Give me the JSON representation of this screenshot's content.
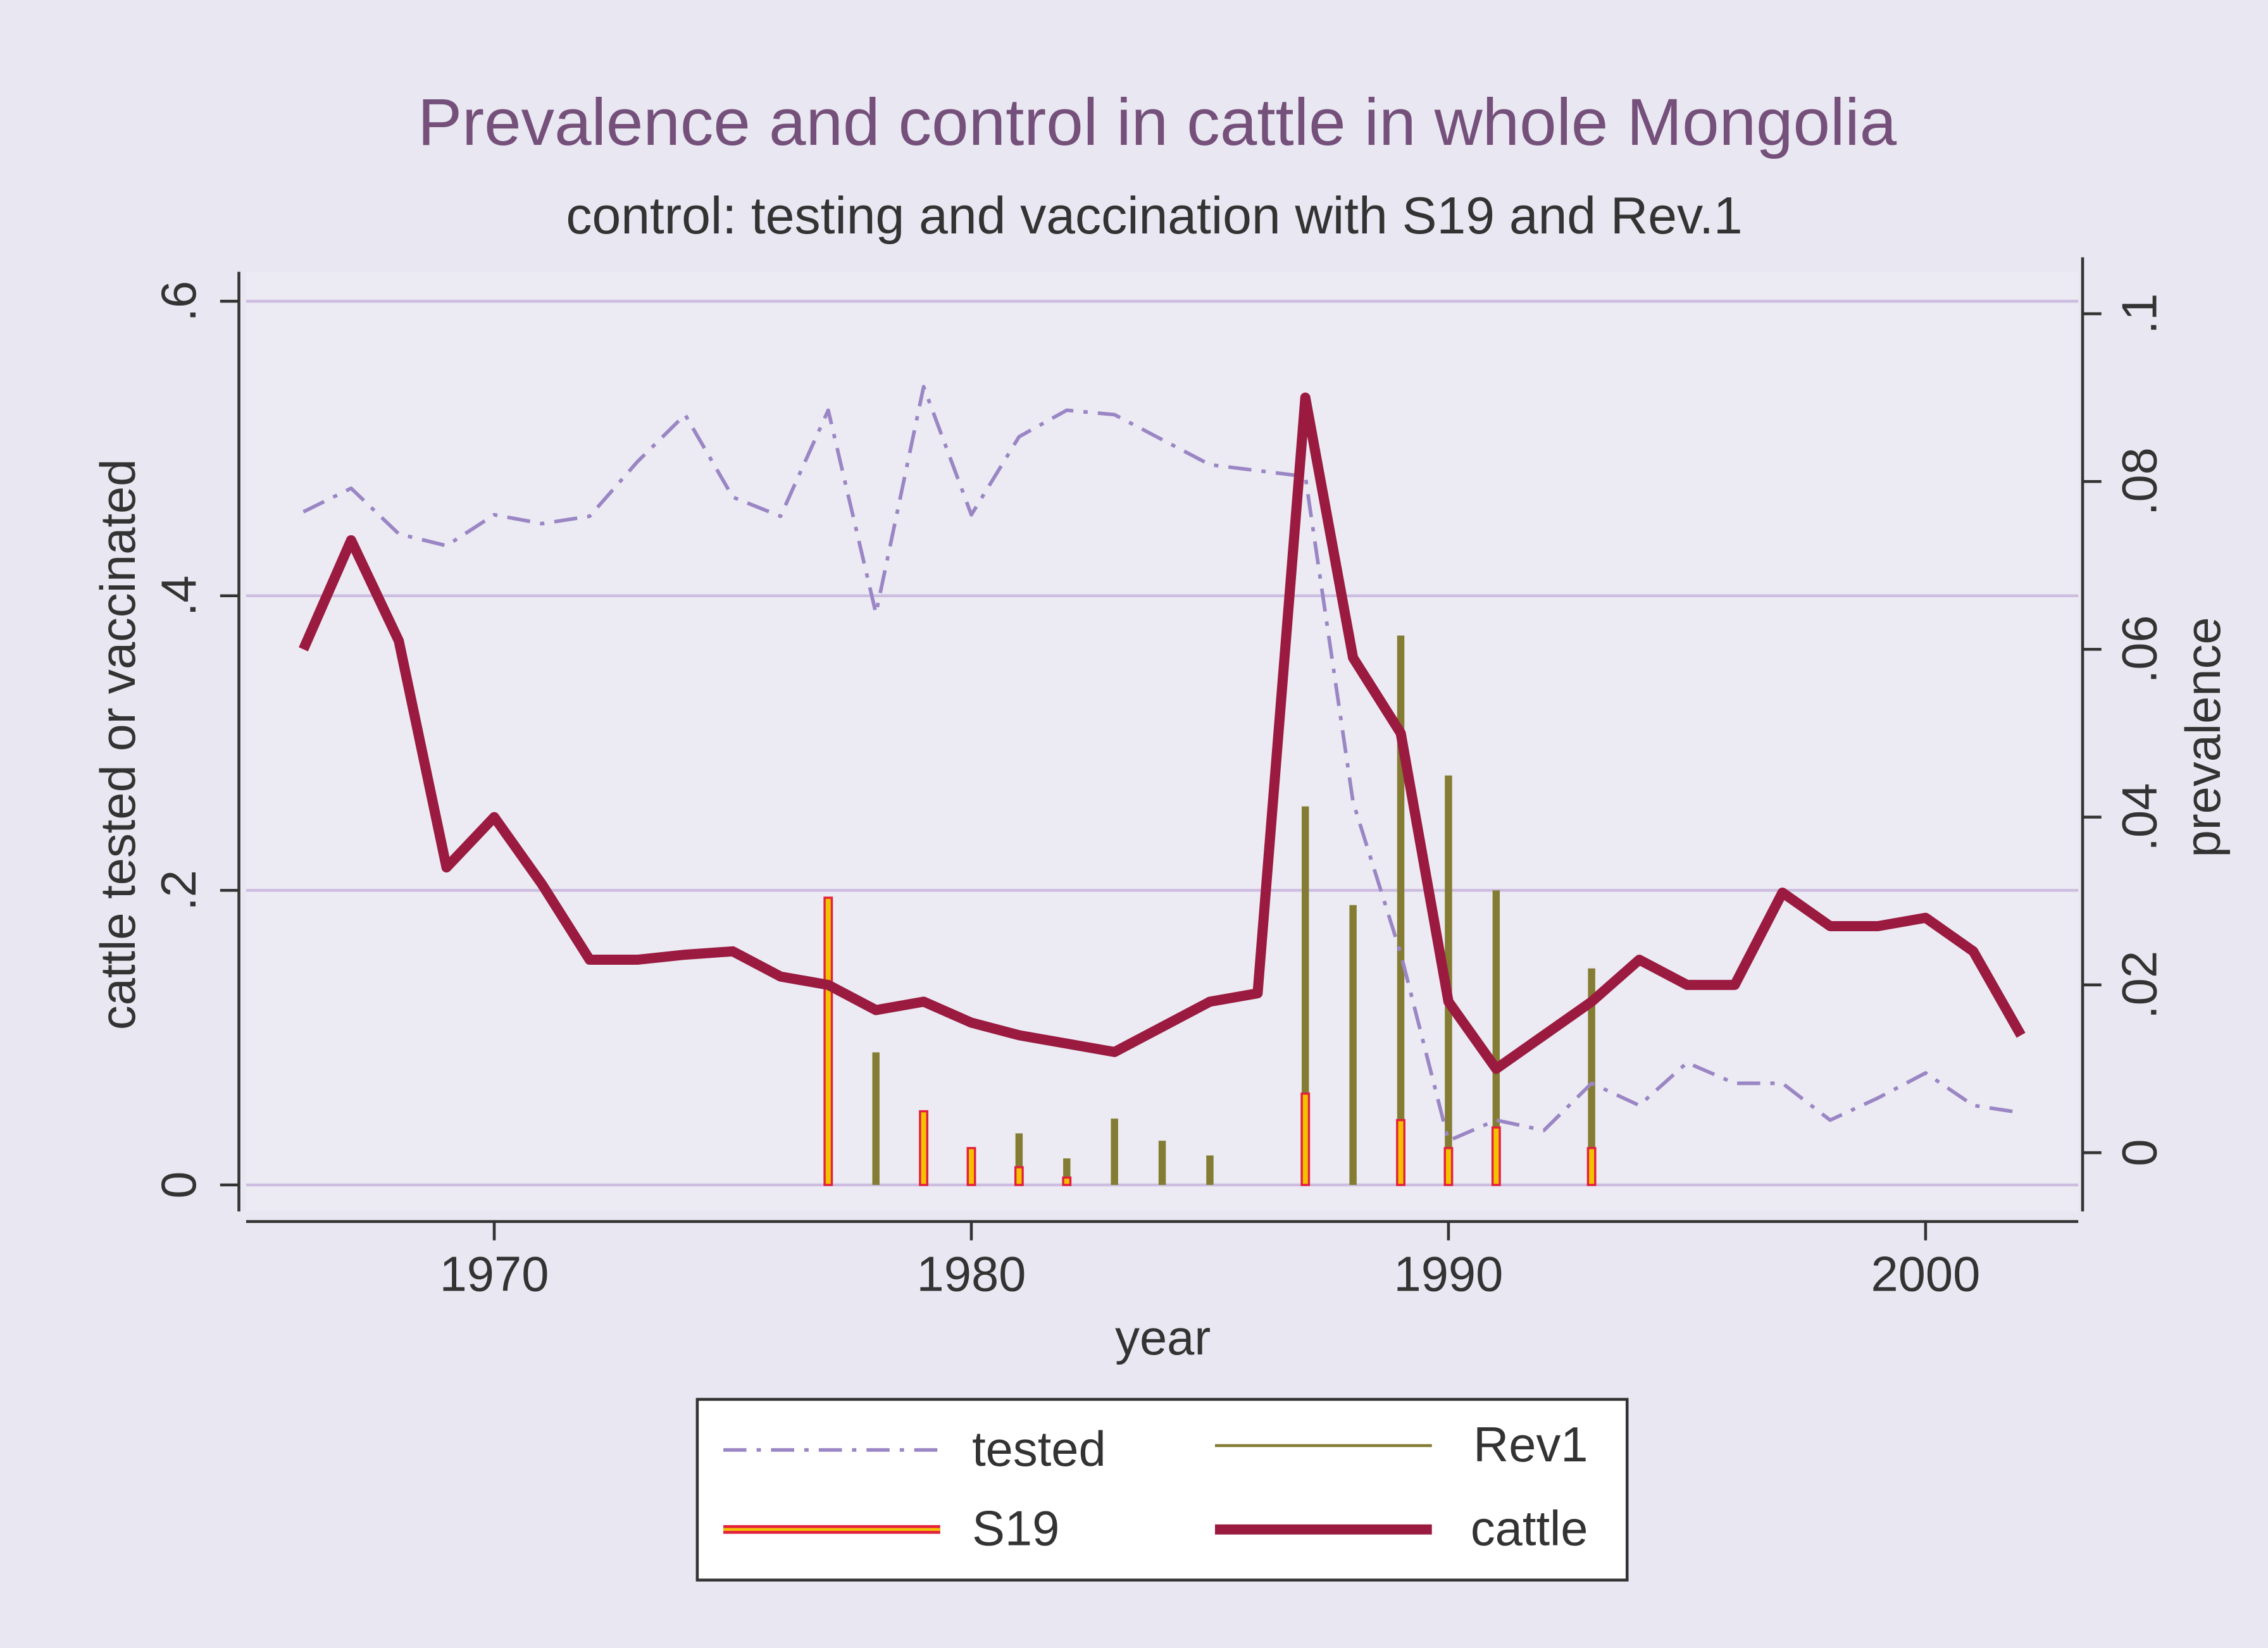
{
  "chart_data": {
    "type": "combo",
    "title": "Prevalence and control in cattle in whole Mongolia",
    "subtitle": "control: testing and vaccination with S19 and Rev.1",
    "xlabel": "year",
    "ylabel": "cattle tested or vaccinated",
    "y2label": "prevalence",
    "x": [
      1966,
      1967,
      1968,
      1969,
      1970,
      1971,
      1972,
      1973,
      1974,
      1975,
      1976,
      1977,
      1978,
      1979,
      1980,
      1981,
      1982,
      1983,
      1984,
      1985,
      1986,
      1987,
      1988,
      1989,
      1990,
      1991,
      1992,
      1993,
      1994,
      1995,
      1996,
      1997,
      1998,
      1999,
      2000,
      2001,
      2002
    ],
    "xlim": [
      1964.8,
      2003.2
    ],
    "xticks": [
      1970,
      1980,
      1990,
      2000
    ],
    "ylim": [
      -0.018,
      0.62
    ],
    "yticks": [
      0,
      {
        "value": 0.2,
        "label": ".2"
      },
      {
        "value": 0.4,
        "label": ".4"
      },
      {
        "value": 0.6,
        "label": ".6"
      }
    ],
    "y2lim": [
      -0.007,
      0.105
    ],
    "y2ticks": [
      0,
      {
        "value": 0.02,
        "label": ".02"
      },
      {
        "value": 0.04,
        "label": ".04"
      },
      {
        "value": 0.06,
        "label": ".06"
      },
      {
        "value": 0.08,
        "label": ".08"
      },
      {
        "value": 0.1,
        "label": ".1"
      }
    ],
    "grid": true,
    "series": [
      {
        "name": "tested",
        "type": "line",
        "style": "dashdot",
        "color": "#9a86c4",
        "axis": "y",
        "values": [
          0.457,
          0.473,
          0.442,
          0.434,
          0.455,
          0.449,
          0.454,
          0.491,
          0.523,
          0.467,
          0.454,
          0.526,
          0.388,
          0.542,
          0.455,
          0.508,
          0.526,
          0.523,
          0.506,
          0.489,
          0.485,
          0.481,
          0.26,
          0.157,
          0.03,
          0.044,
          0.037,
          0.069,
          0.054,
          0.083,
          0.069,
          0.069,
          0.044,
          0.059,
          0.076,
          0.054,
          0.049
        ]
      },
      {
        "name": "Rev1",
        "type": "bar",
        "color": "#837c32",
        "axis": "y",
        "values": [
          null,
          null,
          null,
          null,
          null,
          null,
          null,
          null,
          null,
          null,
          null,
          null,
          0.09,
          null,
          null,
          0.035,
          0.018,
          0.045,
          0.03,
          0.02,
          null,
          0.257,
          0.19,
          0.373,
          0.278,
          0.2,
          null,
          0.147,
          null,
          null,
          null,
          null,
          null,
          null,
          null,
          null,
          null
        ]
      },
      {
        "name": "S19",
        "type": "bar",
        "color": "#f2c200",
        "edge": "#e3203c",
        "axis": "y",
        "values": [
          null,
          null,
          null,
          null,
          null,
          null,
          null,
          null,
          null,
          null,
          null,
          0.195,
          null,
          0.05,
          0.025,
          0.012,
          0.005,
          null,
          null,
          null,
          null,
          0.062,
          null,
          0.044,
          0.025,
          0.039,
          null,
          0.025,
          null,
          null,
          null,
          null,
          null,
          null,
          null,
          null,
          null
        ]
      },
      {
        "name": "cattle",
        "type": "line",
        "style": "solid",
        "color": "#9b1b40",
        "axis": "y2",
        "values": [
          0.06,
          0.073,
          0.061,
          0.034,
          0.04,
          0.032,
          0.023,
          0.023,
          0.0236,
          0.024,
          0.021,
          0.02,
          0.017,
          0.018,
          0.0155,
          0.014,
          0.013,
          0.012,
          0.015,
          0.018,
          0.019,
          0.09,
          0.059,
          0.05,
          0.018,
          0.01,
          0.014,
          0.018,
          0.023,
          0.02,
          0.02,
          0.031,
          0.027,
          0.027,
          0.028,
          0.024,
          0.014
        ]
      }
    ]
  }
}
